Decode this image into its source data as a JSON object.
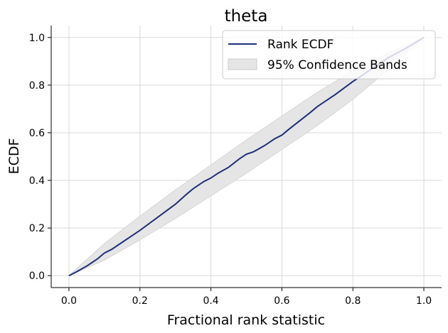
{
  "chart_data": {
    "type": "line",
    "title": "theta",
    "xlabel": "Fractional rank statistic",
    "ylabel": "ECDF",
    "xlim": [
      -0.05,
      1.05
    ],
    "ylim": [
      -0.05,
      1.05
    ],
    "xticks": [
      "0.0",
      "0.2",
      "0.4",
      "0.6",
      "0.8",
      "1.0"
    ],
    "yticks": [
      "0.0",
      "0.2",
      "0.4",
      "0.6",
      "0.8",
      "1.0"
    ],
    "grid": true,
    "legend_position": "top-right",
    "series": [
      {
        "name": "Rank ECDF",
        "color": "#1f2f7a",
        "x": [
          0.0,
          0.02,
          0.05,
          0.08,
          0.1,
          0.12,
          0.15,
          0.18,
          0.2,
          0.25,
          0.3,
          0.33,
          0.35,
          0.38,
          0.4,
          0.42,
          0.45,
          0.48,
          0.5,
          0.52,
          0.55,
          0.58,
          0.6,
          0.62,
          0.65,
          0.68,
          0.7,
          0.75,
          0.8,
          0.82,
          0.85,
          0.88,
          0.9,
          0.95,
          1.0
        ],
        "y": [
          0.0,
          0.015,
          0.04,
          0.07,
          0.095,
          0.11,
          0.14,
          0.17,
          0.19,
          0.245,
          0.3,
          0.34,
          0.365,
          0.395,
          0.41,
          0.43,
          0.455,
          0.49,
          0.51,
          0.52,
          0.545,
          0.575,
          0.59,
          0.615,
          0.65,
          0.685,
          0.71,
          0.76,
          0.815,
          0.835,
          0.865,
          0.895,
          0.915,
          0.955,
          1.0
        ]
      }
    ],
    "confidence_band": {
      "name": "95% Confidence Bands",
      "color": "#e5e5e5",
      "x": [
        0.0,
        0.1,
        0.2,
        0.3,
        0.4,
        0.5,
        0.6,
        0.7,
        0.8,
        0.9,
        1.0
      ],
      "lower": [
        0.0,
        0.065,
        0.15,
        0.24,
        0.335,
        0.43,
        0.53,
        0.63,
        0.74,
        0.865,
        1.0
      ],
      "upper": [
        0.0,
        0.135,
        0.25,
        0.36,
        0.465,
        0.57,
        0.67,
        0.77,
        0.86,
        0.935,
        1.0
      ]
    }
  }
}
